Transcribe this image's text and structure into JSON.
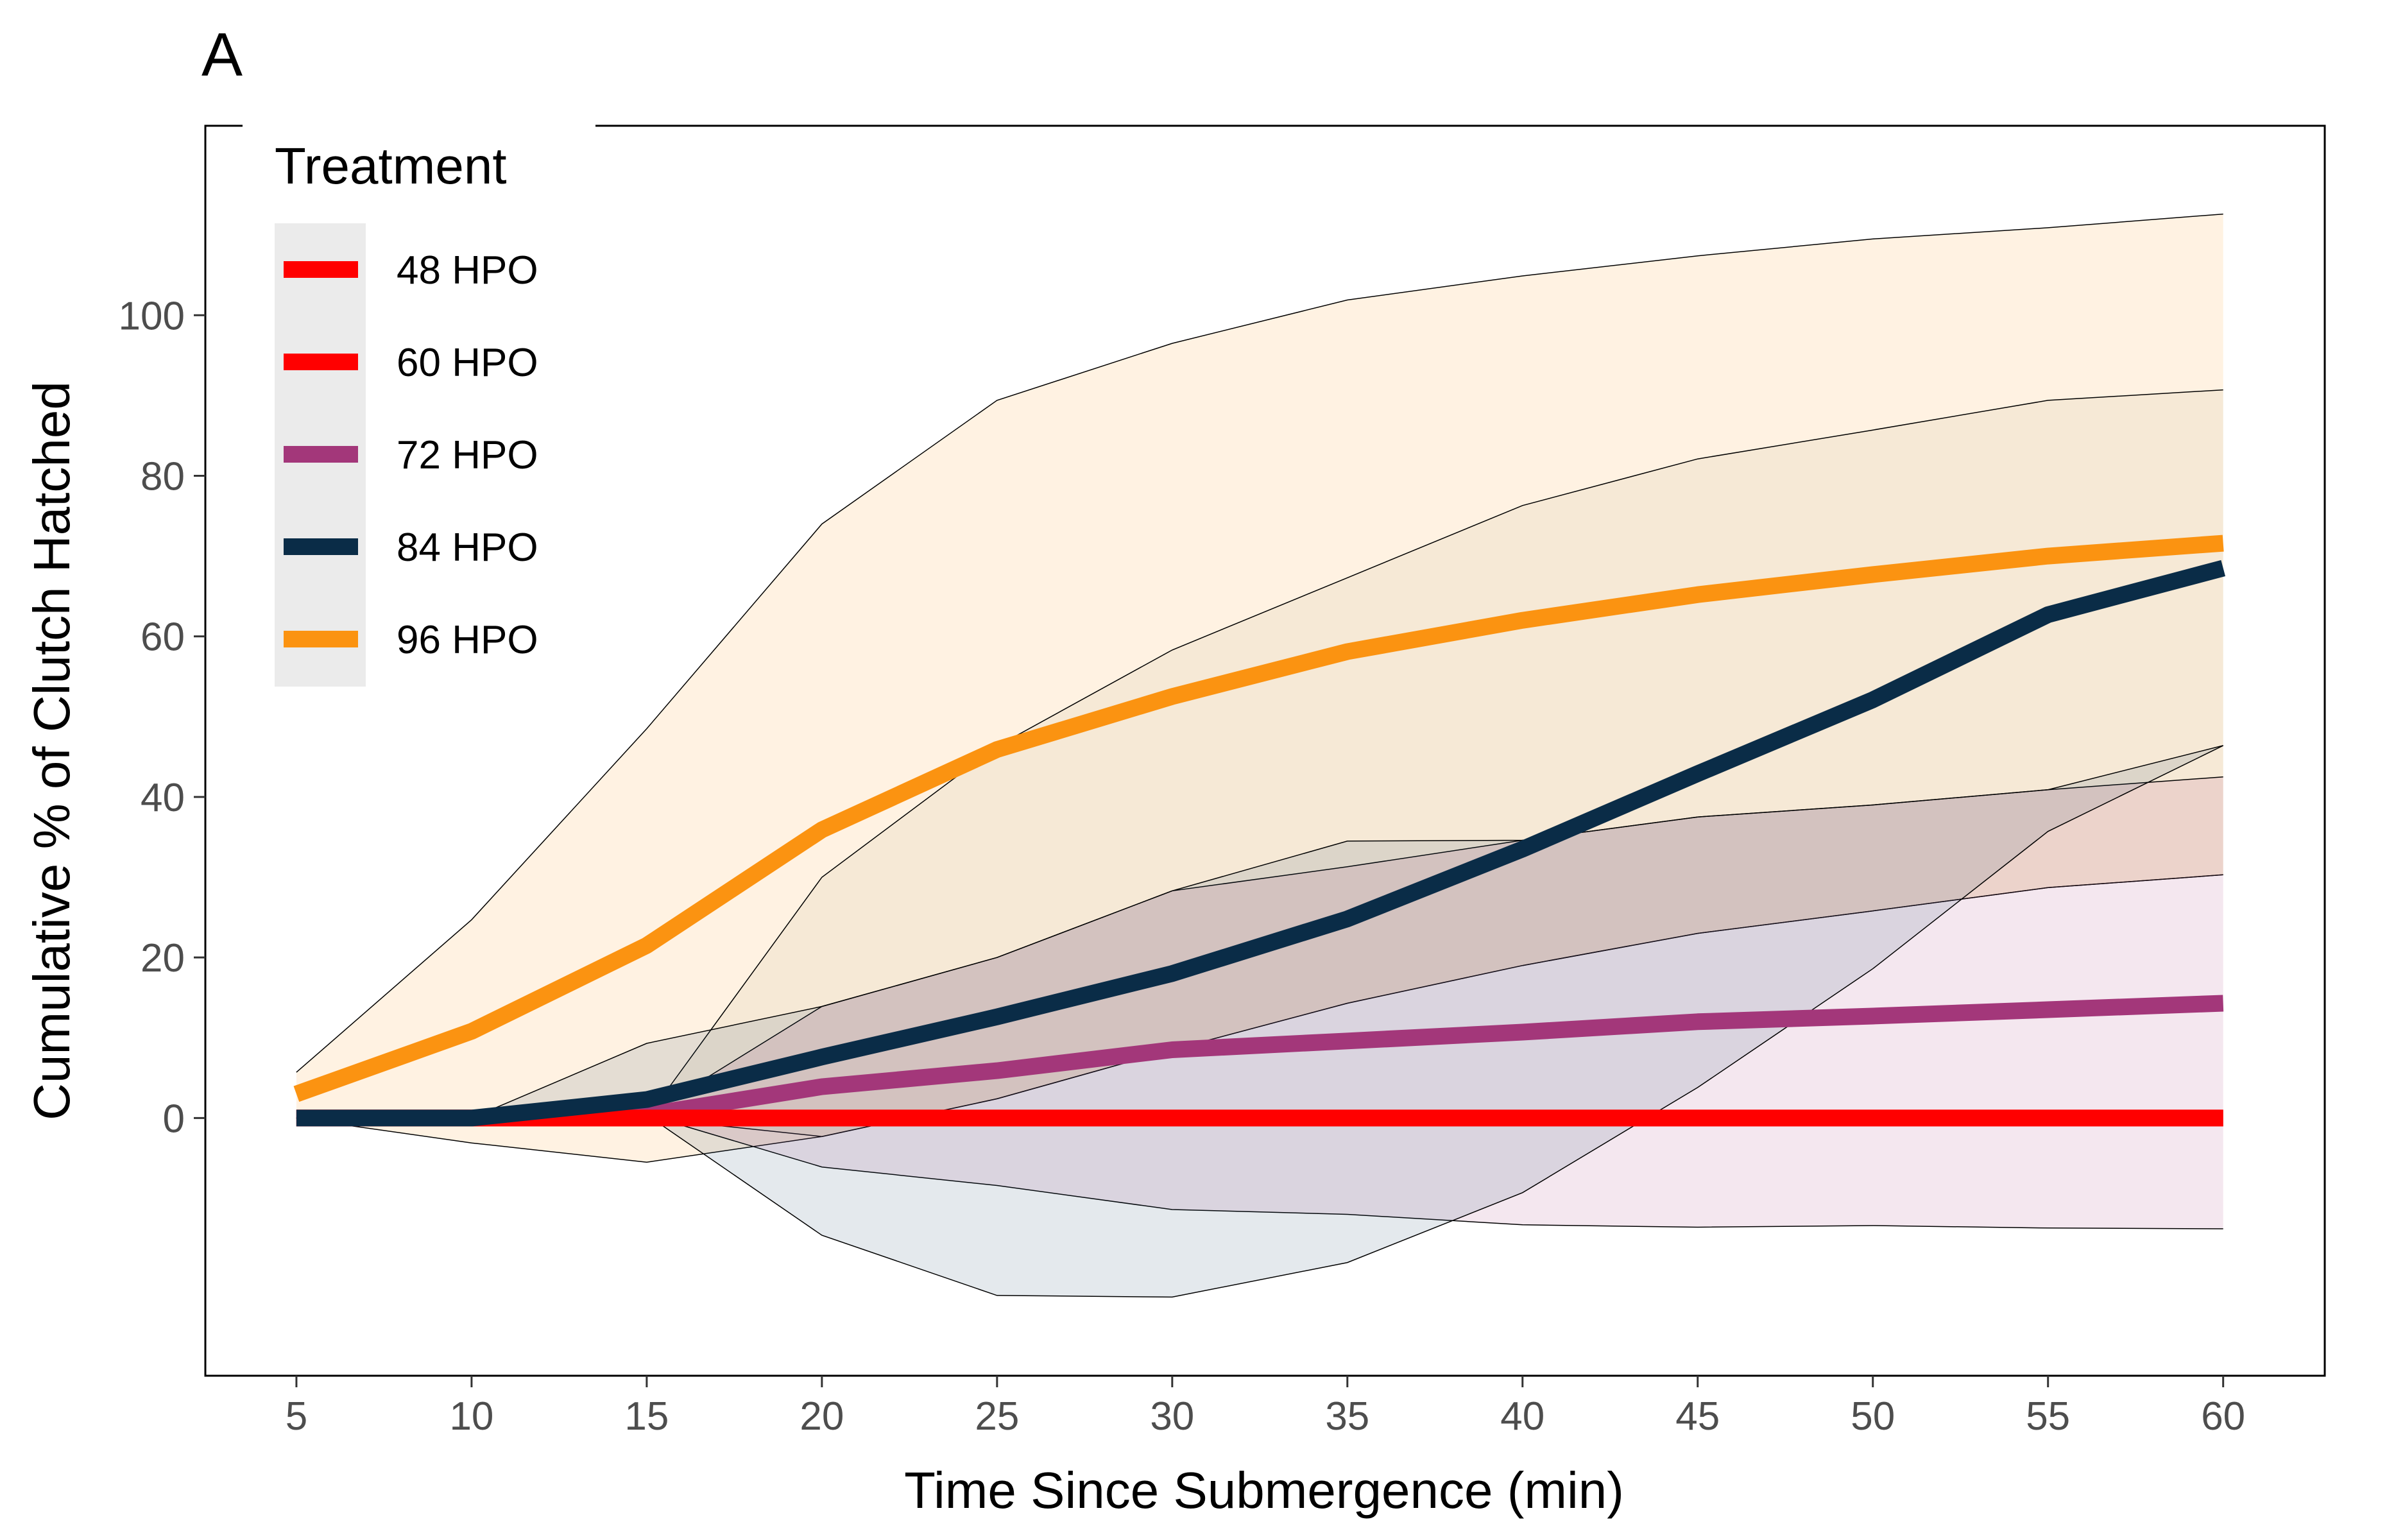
{
  "panel_label": "A",
  "chart_data": {
    "type": "line",
    "xlabel": "Time Since Submergence (min)",
    "ylabel": "Cumulative % of Clutch Hatched",
    "x": [
      5,
      10,
      15,
      20,
      25,
      30,
      35,
      40,
      45,
      50,
      55,
      60
    ],
    "xlim": [
      2.4,
      62.9
    ],
    "ylim": [
      -32.1,
      123.6
    ],
    "xticks": [
      5,
      10,
      15,
      20,
      25,
      30,
      35,
      40,
      45,
      50,
      55,
      60
    ],
    "yticks": [
      0,
      20,
      40,
      60,
      80,
      100
    ],
    "grid": false,
    "legend": {
      "title": "Treatment",
      "placement": "top-left"
    },
    "series": [
      {
        "name": "48 HPO",
        "color": "#ff0000",
        "values": [
          0,
          0,
          0,
          0,
          0,
          0,
          0,
          0,
          0,
          0,
          0,
          0
        ],
        "upper": null,
        "lower": null
      },
      {
        "name": "60 HPO",
        "color": "#ff0000",
        "values": [
          0,
          0,
          0,
          0,
          0,
          0,
          0,
          0,
          0,
          0,
          0,
          0
        ],
        "upper": null,
        "lower": null
      },
      {
        "name": "72 HPO",
        "color": "#a3377a",
        "band_color": "#a3377a",
        "values": [
          0,
          0,
          0.4,
          3.9,
          5.9,
          8.5,
          9.6,
          10.7,
          12.0,
          12.7,
          13.5,
          14.3
        ],
        "upper": [
          0,
          0,
          0.4,
          13.9,
          20.0,
          28.3,
          31.3,
          34.6,
          37.5,
          39.0,
          40.9,
          42.5
        ],
        "lower": [
          0,
          0,
          0.4,
          -6.1,
          -8.4,
          -11.4,
          -12.0,
          -13.3,
          -13.6,
          -13.4,
          -13.7,
          -13.8
        ]
      },
      {
        "name": "84 HPO",
        "color": "#0a2c47",
        "band_color": "#1e4a6e",
        "values": [
          0,
          0,
          2.3,
          7.6,
          12.6,
          18.0,
          24.8,
          33.5,
          42.9,
          52.1,
          62.7,
          68.5
        ],
        "upper": [
          0,
          0,
          9.3,
          13.9,
          20.0,
          28.3,
          34.5,
          34.6,
          37.5,
          39.0,
          40.9,
          46.4
        ],
        "lower": [
          0,
          0,
          0.4,
          -14.6,
          -22.1,
          -22.3,
          -18.0,
          -9.3,
          3.8,
          18.6,
          35.7,
          46.4
        ]
      },
      {
        "name": "96 HPO",
        "color": "#fb9311",
        "band_color": "#fb9311",
        "values": [
          3.0,
          10.8,
          21.5,
          35.9,
          45.9,
          52.5,
          58.1,
          62.0,
          65.2,
          67.7,
          70.0,
          71.6
        ],
        "upper": [
          5.7,
          24.7,
          48.5,
          74.0,
          89.4,
          96.5,
          101.9,
          104.9,
          107.4,
          109.5,
          110.9,
          112.6
        ],
        "lower": [
          0,
          -3.1,
          -5.5,
          -2.3,
          2.4,
          8.5,
          14.3,
          19.0,
          23.0,
          25.8,
          28.7,
          30.3
        ]
      },
      {
        "name": "",
        "color": "#5a4a30",
        "band_color": "#b8ab86",
        "values": null,
        "upper": [
          0,
          0,
          0,
          30.0,
          46.3,
          58.3,
          67.3,
          76.3,
          82.1,
          85.7,
          89.4,
          90.7
        ],
        "lower": [
          0,
          0,
          0,
          -2.3,
          2.4,
          8.5,
          14.3,
          19.0,
          23.0,
          25.8,
          28.7,
          30.3
        ]
      }
    ]
  }
}
